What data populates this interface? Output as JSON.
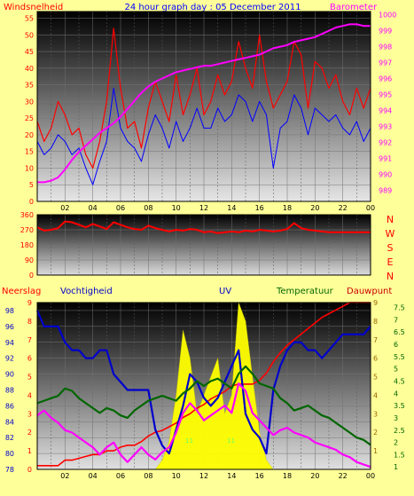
{
  "title": "24 hour graph day : 05 December 2011",
  "colors": {
    "background": "#ffff99",
    "wind": "#ff0000",
    "gust_line": "#0000ff",
    "barometer": "#ff00ff",
    "rain": "#ff0000",
    "humidity": "#0000cc",
    "uv": "#ffff00",
    "temperature": "#006600",
    "dewpoint": "#ff00ff",
    "solar": "#c8c8c8"
  },
  "x_tick_labels": [
    "02",
    "04",
    "06",
    "08",
    "10",
    "12",
    "14",
    "16",
    "18",
    "20",
    "22",
    "00"
  ],
  "chart_data": [
    {
      "type": "line",
      "title": "24 hour graph day : 05 December 2011",
      "left_axis_label": "Windsnelheid",
      "right_axis_label": "Barometer",
      "left_ticks": [
        "0",
        "5",
        "10",
        "15",
        "20",
        "25",
        "30",
        "35",
        "40",
        "45",
        "50",
        "55"
      ],
      "right_ticks": [
        "989",
        "990",
        "991",
        "992",
        "993",
        "994",
        "995",
        "996",
        "997",
        "998",
        "999",
        "1000"
      ],
      "ylim_left": [
        0,
        57
      ],
      "ylim_right": [
        988.3,
        1000.2
      ],
      "x_hours": [
        0,
        0.5,
        1,
        1.5,
        2,
        2.5,
        3,
        3.5,
        4,
        4.5,
        5,
        5.5,
        6,
        6.5,
        7,
        7.5,
        8,
        8.5,
        9,
        9.5,
        10,
        10.5,
        11,
        11.5,
        12,
        12.5,
        13,
        13.5,
        14,
        14.5,
        15,
        15.5,
        16,
        16.5,
        17,
        17.5,
        18,
        18.5,
        19,
        19.5,
        20,
        20.5,
        21,
        21.5,
        22,
        22.5,
        23,
        23.5,
        24
      ],
      "series": [
        {
          "role": "gust",
          "color": "#ff0000",
          "values": [
            24,
            18,
            22,
            30,
            26,
            20,
            22,
            14,
            10,
            18,
            30,
            52,
            34,
            22,
            24,
            16,
            28,
            36,
            30,
            24,
            38,
            26,
            32,
            40,
            26,
            30,
            38,
            32,
            36,
            48,
            40,
            34,
            50,
            36,
            28,
            32,
            36,
            48,
            44,
            28,
            42,
            40,
            34,
            38,
            30,
            26,
            34,
            28,
            34
          ]
        },
        {
          "role": "average",
          "color": "#0000ff",
          "values": [
            18,
            14,
            16,
            20,
            18,
            14,
            16,
            10,
            5,
            12,
            18,
            34,
            22,
            18,
            16,
            12,
            20,
            26,
            22,
            16,
            24,
            18,
            22,
            28,
            22,
            22,
            28,
            24,
            26,
            32,
            30,
            24,
            30,
            26,
            10,
            22,
            24,
            32,
            28,
            20,
            28,
            26,
            24,
            26,
            22,
            20,
            24,
            18,
            22
          ]
        },
        {
          "role": "barometer",
          "color": "#ff00ff",
          "values": [
            989.5,
            989.5,
            989.6,
            989.8,
            990.3,
            990.9,
            991.4,
            991.8,
            992.2,
            992.6,
            992.9,
            993.2,
            993.6,
            994.1,
            994.6,
            995.1,
            995.5,
            995.8,
            996.0,
            996.2,
            996.4,
            996.5,
            996.6,
            996.7,
            996.8,
            996.8,
            996.9,
            997.0,
            997.1,
            997.2,
            997.3,
            997.4,
            997.5,
            997.7,
            997.9,
            998.0,
            998.1,
            998.3,
            998.4,
            998.5,
            998.6,
            998.8,
            999.0,
            999.2,
            999.3,
            999.4,
            999.4,
            999.3,
            999.3
          ]
        }
      ]
    },
    {
      "type": "line",
      "left_ticks": [
        "0",
        "90",
        "180",
        "270",
        "360"
      ],
      "direction_labels": [
        "N",
        "W",
        "S",
        "E",
        "N"
      ],
      "ylim": [
        0,
        360
      ],
      "x_hours": [
        0,
        0.5,
        1,
        1.5,
        2,
        2.5,
        3,
        3.5,
        4,
        4.5,
        5,
        5.5,
        6,
        6.5,
        7,
        7.5,
        8,
        8.5,
        9,
        9.5,
        10,
        10.5,
        11,
        11.5,
        12,
        12.5,
        13,
        13.5,
        14,
        14.5,
        15,
        15.5,
        16,
        16.5,
        17,
        17.5,
        18,
        18.5,
        19,
        19.5,
        20,
        20.5,
        21,
        21.5,
        22,
        22.5,
        23,
        23.5,
        24
      ],
      "series": [
        {
          "role": "wind_direction",
          "color": "#ff0000",
          "values": [
            285,
            265,
            270,
            280,
            320,
            315,
            300,
            285,
            305,
            290,
            275,
            315,
            300,
            285,
            275,
            270,
            295,
            280,
            270,
            260,
            270,
            265,
            275,
            270,
            255,
            260,
            250,
            255,
            260,
            255,
            265,
            260,
            270,
            265,
            260,
            265,
            275,
            310,
            280,
            270,
            265,
            260,
            255,
            255,
            255,
            255,
            255,
            255,
            255
          ]
        }
      ]
    },
    {
      "type": "line",
      "legend": [
        "Neerslag",
        "Vochtigheid",
        "UV",
        "Temperatuur",
        "Dauwpunt"
      ],
      "left_ticks": [
        "78",
        "80",
        "82",
        "84",
        "86",
        "88",
        "90",
        "92",
        "94",
        "96",
        "98"
      ],
      "ylim_humidity": [
        78,
        99
      ],
      "ylim_rain": [
        0,
        9
      ],
      "ylim_uv": [
        0,
        9
      ],
      "right_ticks": [
        "1",
        "1.5",
        "2",
        "2.5",
        "3",
        "3.5",
        "4",
        "4.5",
        "5",
        "5.5",
        "6",
        "6.5",
        "7",
        "7.5"
      ],
      "ylim_temperature": [
        0.9,
        7.7
      ],
      "rain_ticks": [
        "0",
        "1",
        "2",
        "3",
        "4",
        "5",
        "6",
        "7",
        "8",
        "9"
      ],
      "uv_ticks": [
        "1",
        "2",
        "3",
        "4",
        "5",
        "6",
        "7",
        "8",
        "9"
      ],
      "annotations": [
        "1",
        "1",
        "1",
        "1"
      ],
      "x_hours": [
        0,
        0.5,
        1,
        1.5,
        2,
        2.5,
        3,
        3.5,
        4,
        4.5,
        5,
        5.5,
        6,
        6.5,
        7,
        7.5,
        8,
        8.5,
        9,
        9.5,
        10,
        10.5,
        11,
        11.5,
        12,
        12.5,
        13,
        13.5,
        14,
        14.5,
        15,
        15.5,
        16,
        16.5,
        17,
        17.5,
        18,
        18.5,
        19,
        19.5,
        20,
        20.5,
        21,
        21.5,
        22,
        22.5,
        23,
        23.5,
        24
      ],
      "series": [
        {
          "role": "rain",
          "color": "#ff0000",
          "values": [
            0.2,
            0.2,
            0.2,
            0.2,
            0.5,
            0.5,
            0.6,
            0.7,
            0.8,
            0.8,
            1.0,
            1.0,
            1.2,
            1.3,
            1.3,
            1.5,
            1.8,
            2.0,
            2.1,
            2.3,
            2.5,
            2.8,
            3.0,
            3.3,
            3.5,
            3.8,
            4.0,
            4.2,
            4.5,
            4.6,
            4.6,
            4.6,
            4.8,
            5.2,
            5.8,
            6.3,
            6.7,
            7.0,
            7.3,
            7.6,
            7.9,
            8.2,
            8.4,
            8.6,
            8.8,
            9.0,
            9.0,
            9.0,
            9.0
          ]
        },
        {
          "role": "humidity",
          "color": "#0000cc",
          "values": [
            98,
            96,
            96,
            96,
            94,
            93,
            93,
            92,
            92,
            93,
            93,
            90,
            89,
            88,
            88,
            88,
            88,
            83,
            81,
            80,
            83,
            86,
            90,
            89,
            87,
            86,
            87,
            89,
            91,
            93,
            85,
            83,
            82,
            80,
            88,
            91,
            93,
            94,
            94,
            93,
            93,
            92,
            93,
            94,
            95,
            95,
            95,
            95,
            96
          ]
        },
        {
          "role": "uv",
          "color": "#ffff00",
          "values": [
            0,
            0,
            0,
            0,
            0,
            0,
            0,
            0,
            0,
            0,
            0,
            0,
            0,
            0,
            0,
            0,
            0,
            0,
            0.5,
            1.5,
            4.0,
            7.5,
            6.0,
            3.0,
            4.0,
            5.0,
            6.0,
            3.0,
            4.0,
            9.0,
            8.0,
            5.0,
            2.0,
            0.5,
            0,
            0,
            0,
            0,
            0,
            0,
            0,
            0,
            0,
            0,
            0,
            0,
            0,
            0,
            0
          ]
        },
        {
          "role": "temperature",
          "color": "#006600",
          "values": [
            3.6,
            3.7,
            3.8,
            3.9,
            4.2,
            4.1,
            3.8,
            3.6,
            3.4,
            3.2,
            3.4,
            3.3,
            3.1,
            3.0,
            3.3,
            3.5,
            3.7,
            3.8,
            3.9,
            3.8,
            3.7,
            4.0,
            4.2,
            4.5,
            4.3,
            4.5,
            4.6,
            4.4,
            4.2,
            4.8,
            5.1,
            4.8,
            4.4,
            4.3,
            4.2,
            3.8,
            3.6,
            3.3,
            3.4,
            3.5,
            3.3,
            3.1,
            3.0,
            2.8,
            2.6,
            2.4,
            2.2,
            2.1,
            1.9
          ]
        },
        {
          "role": "dewpoint",
          "color": "#ff00ff",
          "values": [
            3.1,
            3.3,
            3.0,
            2.8,
            2.5,
            2.4,
            2.2,
            2.0,
            1.8,
            1.5,
            1.8,
            2.0,
            1.5,
            1.2,
            1.5,
            1.8,
            1.5,
            1.3,
            1.6,
            1.8,
            2.4,
            3.2,
            3.6,
            3.3,
            2.9,
            3.1,
            3.3,
            3.5,
            3.2,
            4.4,
            4.1,
            3.2,
            2.9,
            2.6,
            2.3,
            2.5,
            2.6,
            2.4,
            2.3,
            2.2,
            2.0,
            1.9,
            1.8,
            1.7,
            1.5,
            1.4,
            1.2,
            1.1,
            1.0
          ]
        }
      ]
    }
  ]
}
